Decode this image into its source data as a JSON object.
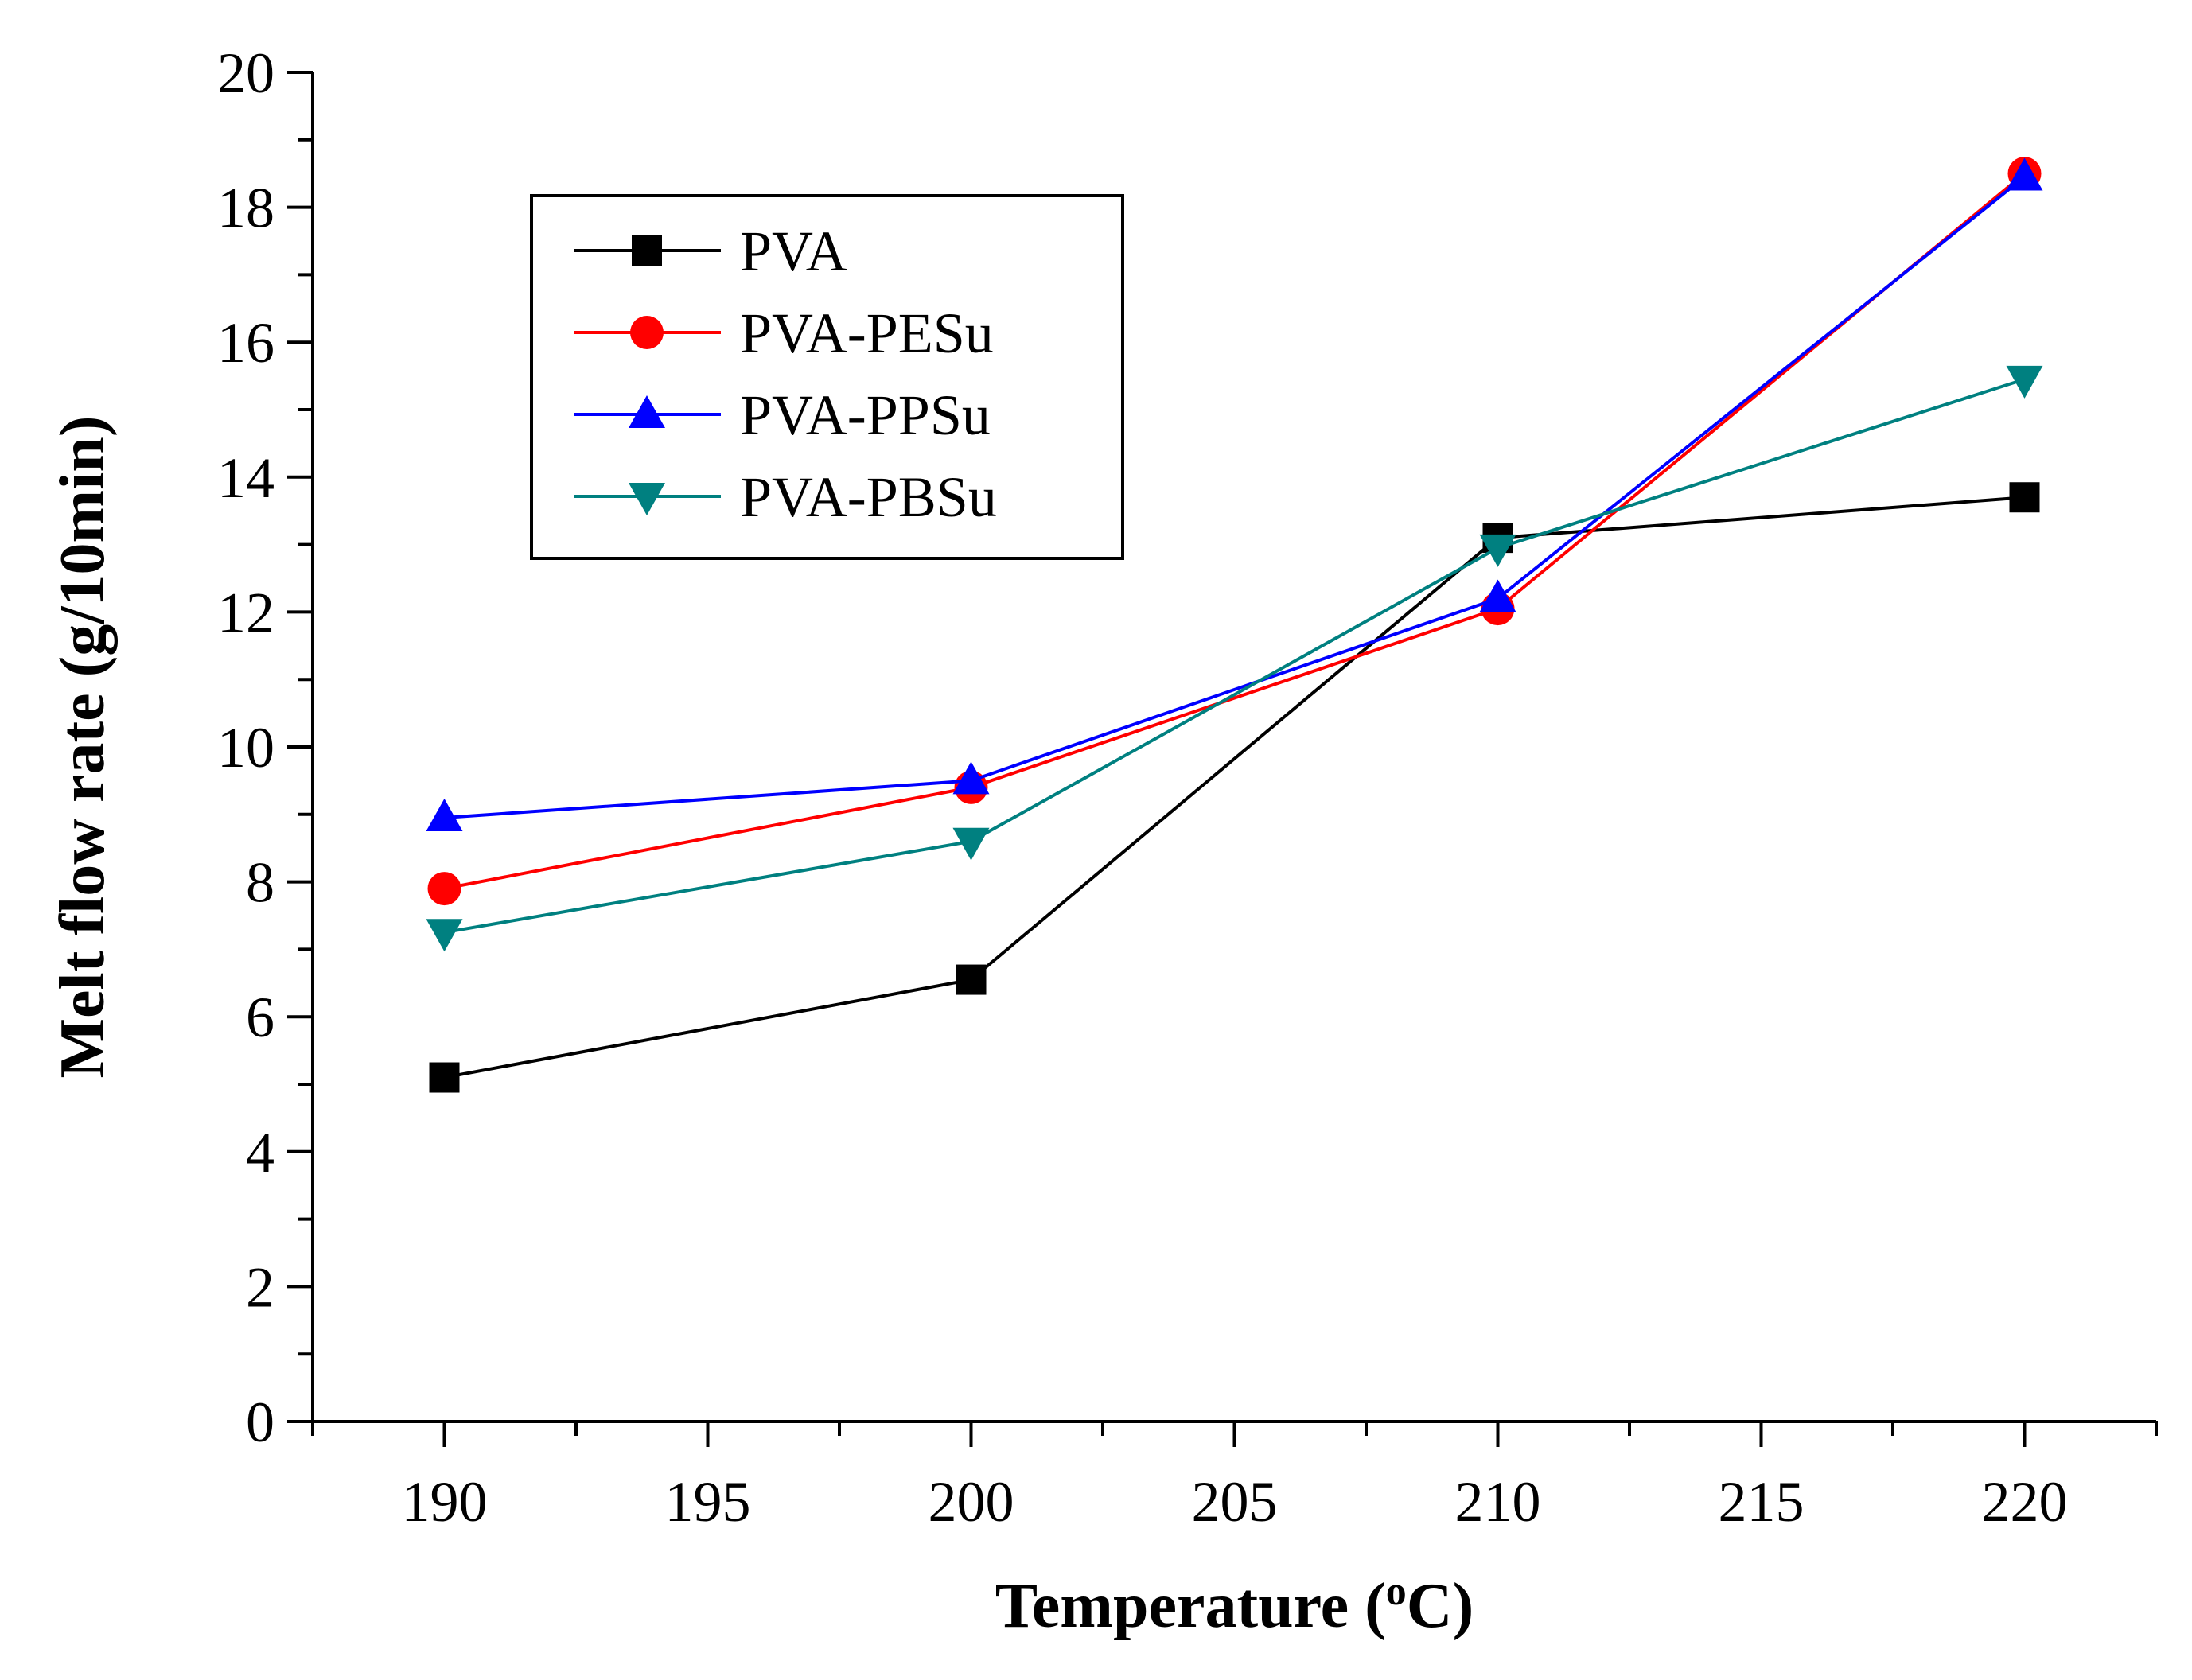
{
  "chart_data": {
    "type": "line",
    "title": "",
    "xlabel": "Temperature (oC)",
    "xlabel_parts": {
      "main": "Temperature (",
      "superscript": "o",
      "unit": "C)"
    },
    "ylabel": "Melt flow rate (g/10min)",
    "xlim": [
      187.5,
      222.5
    ],
    "ylim": [
      0,
      20
    ],
    "x_ticks": [
      190,
      195,
      200,
      205,
      210,
      215,
      220
    ],
    "y_ticks": [
      0,
      2,
      4,
      6,
      8,
      10,
      12,
      14,
      16,
      18,
      20
    ],
    "x": [
      190,
      200,
      210,
      220
    ],
    "series": [
      {
        "name": "PVA",
        "values": [
          5.1,
          6.55,
          13.1,
          13.7
        ],
        "color": "#000000",
        "marker": "square"
      },
      {
        "name": "PVA-PESu",
        "values": [
          7.9,
          9.4,
          12.05,
          18.5
        ],
        "color": "#ff0000",
        "marker": "circle"
      },
      {
        "name": "PVA-PPSu",
        "values": [
          8.95,
          9.5,
          12.2,
          18.45
        ],
        "color": "#0000ff",
        "marker": "triangle-up"
      },
      {
        "name": "PVA-PBSu",
        "values": [
          7.25,
          8.6,
          12.95,
          15.45
        ],
        "color": "#008080",
        "marker": "triangle-down"
      }
    ],
    "legend_position": "top-left",
    "grid": false
  }
}
